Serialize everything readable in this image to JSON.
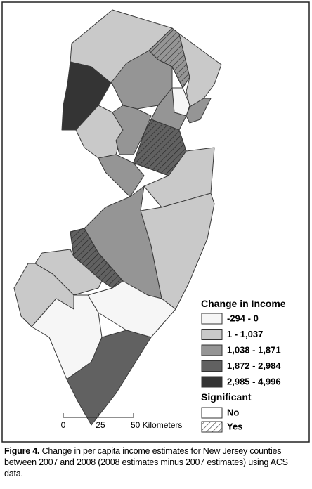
{
  "legend": {
    "title": "Change in Income",
    "items": [
      {
        "label": "-294 - 0",
        "color": "#f6f6f6"
      },
      {
        "label": "1 - 1,037",
        "color": "#c9c9c9"
      },
      {
        "label": "1,038 - 1,871",
        "color": "#959595"
      },
      {
        "label": "1,872 - 2,984",
        "color": "#616161"
      },
      {
        "label": "2,985 - 4,996",
        "color": "#343434"
      }
    ],
    "significance_title": "Significant",
    "significance_items": [
      "No",
      "Yes"
    ]
  },
  "scale_bar": {
    "labels": [
      "0",
      "25",
      "50 Kilometers"
    ]
  },
  "caption": {
    "label": "Figure 4.",
    "text": "Change in per capita income estimates for New Jersey counties between 2007 and 2008 (2008 estimates minus 2007 estimates) using ACS data."
  }
}
